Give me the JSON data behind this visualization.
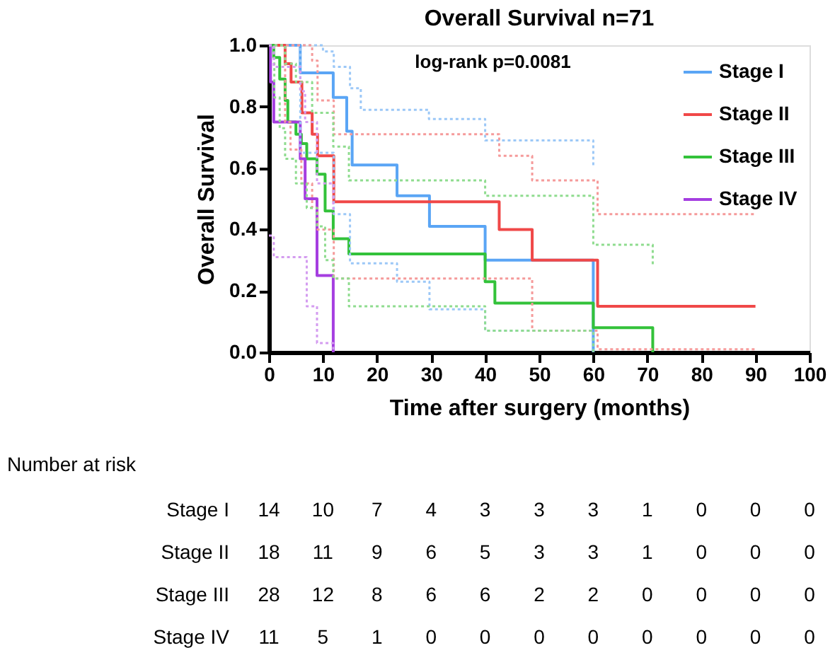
{
  "chart_data": {
    "type": "step",
    "title": "Overall Survival n=71",
    "xlabel": "Time after surgery (months)",
    "ylabel": "Overall Survival",
    "xlim": [
      0,
      100
    ],
    "xticks": [
      0,
      10,
      20,
      30,
      40,
      50,
      60,
      70,
      80,
      90,
      100
    ],
    "ylim": [
      0,
      1
    ],
    "yticks": [
      {
        "value": 0,
        "label": "0.0"
      },
      {
        "value": 0.2,
        "label": "0.2"
      },
      {
        "value": 0.4,
        "label": "0.4"
      },
      {
        "value": 0.6,
        "label": "0.6"
      },
      {
        "value": 0.8,
        "label": "0.8"
      },
      {
        "value": 1,
        "label": "1.0"
      }
    ],
    "grid": false,
    "legend": "top right",
    "series": [
      {
        "name": "Stage I",
        "color": "#5aa5f5",
        "x": [
          0,
          5.8,
          11.9,
          14.4,
          15.4,
          23.7,
          29.7,
          40,
          60
        ],
        "values": [
          1,
          0.91,
          0.83,
          0.72,
          0.61,
          0.51,
          0.41,
          0.3,
          0
        ]
      },
      {
        "name": "Stage II",
        "color": "#f04848",
        "x": [
          0,
          3,
          4.1,
          6.1,
          8,
          9,
          12,
          42.6,
          48.7,
          60.8,
          90
        ],
        "values": [
          1,
          0.94,
          0.88,
          0.78,
          0.71,
          0.64,
          0.49,
          0.4,
          0.3,
          0.15,
          0.15
        ]
      },
      {
        "name": "Stage III",
        "color": "#33c23a",
        "x": [
          0,
          0.9,
          2,
          3,
          3.5,
          5,
          6,
          7,
          8.9,
          10.4,
          11.9,
          14.8,
          40,
          41.8,
          60,
          71
        ],
        "values": [
          1,
          0.96,
          0.89,
          0.82,
          0.75,
          0.71,
          0.68,
          0.63,
          0.58,
          0.46,
          0.37,
          0.32,
          0.23,
          0.16,
          0.08,
          0
        ]
      },
      {
        "name": "Stage IV",
        "color": "#a53ee0",
        "x": [
          0,
          0.3,
          0.9,
          5.8,
          6.7,
          8.9,
          11.9
        ],
        "values": [
          1,
          0.88,
          0.75,
          0.63,
          0.5,
          0.25,
          0
        ]
      },
      {
        "color": "#9cc8f7",
        "line_style": "dotted",
        "x": [
          0,
          10,
          12,
          15,
          17,
          29.6,
          40,
          60
        ],
        "values": [
          1,
          0.98,
          0.93,
          0.86,
          0.79,
          0.76,
          0.69,
          0.6
        ]
      },
      {
        "color": "#9cc8f7",
        "line_style": "dotted",
        "x": [
          0,
          5.8,
          12,
          15,
          23.7,
          29.7,
          40,
          60
        ],
        "values": [
          1,
          0.65,
          0.45,
          0.29,
          0.23,
          0.14,
          0.07,
          0
        ]
      },
      {
        "color": "#f59a9a",
        "line_style": "dotted",
        "x": [
          0,
          8,
          9,
          12,
          42.6,
          48.7,
          60.8,
          90
        ],
        "values": [
          1,
          0.95,
          0.82,
          0.71,
          0.64,
          0.56,
          0.45,
          0.45
        ]
      },
      {
        "color": "#f59a9a",
        "line_style": "dotted",
        "x": [
          0,
          3,
          4,
          6,
          8,
          9,
          12,
          48.7,
          60.8,
          90
        ],
        "values": [
          1,
          0.75,
          0.66,
          0.55,
          0.47,
          0.4,
          0.24,
          0.07,
          0.01,
          0.01
        ]
      },
      {
        "color": "#8fdc8f",
        "line_style": "dotted",
        "x": [
          0,
          3,
          5,
          8,
          11.9,
          14.8,
          40,
          60,
          71
        ],
        "values": [
          1,
          0.94,
          0.88,
          0.78,
          0.67,
          0.56,
          0.51,
          0.35,
          0.28
        ]
      },
      {
        "color": "#8fdc8f",
        "line_style": "dotted",
        "x": [
          0,
          1,
          2,
          3,
          5,
          7,
          8.9,
          10.4,
          11.9,
          14.8,
          40,
          60
        ],
        "values": [
          1,
          0.83,
          0.73,
          0.63,
          0.55,
          0.47,
          0.41,
          0.3,
          0.24,
          0.15,
          0.07,
          0
        ]
      },
      {
        "color": "#d49cf0",
        "line_style": "dotted",
        "x": [
          0,
          0.9,
          5.8,
          6.7,
          8.9,
          11.9
        ],
        "values": [
          1,
          0.93,
          0.85,
          0.75,
          0.55,
          0.45
        ]
      },
      {
        "color": "#d49cf0",
        "line_style": "dotted",
        "x": [
          0,
          0.9,
          7,
          8.9,
          11,
          11.9
        ],
        "values": [
          0.38,
          0.31,
          0.15,
          0.03,
          0.03,
          0
        ]
      }
    ],
    "annotations": [
      "log-rank p=0.0081",
      "Number at risk",
      "Stage I",
      "14",
      "10",
      "7",
      "4",
      "3",
      "3",
      "3",
      "1",
      "0",
      "0",
      "0",
      "Stage II",
      "18",
      "11",
      "9",
      "6",
      "5",
      "3",
      "3",
      "1",
      "0",
      "0",
      "0",
      "Stage III",
      "28",
      "12",
      "8",
      "6",
      "6",
      "2",
      "2",
      "0",
      "0",
      "0",
      "0",
      "Stage IV",
      "11",
      "5",
      "1",
      "0",
      "0",
      "0",
      "0",
      "0",
      "0",
      "0",
      "0"
    ]
  }
}
